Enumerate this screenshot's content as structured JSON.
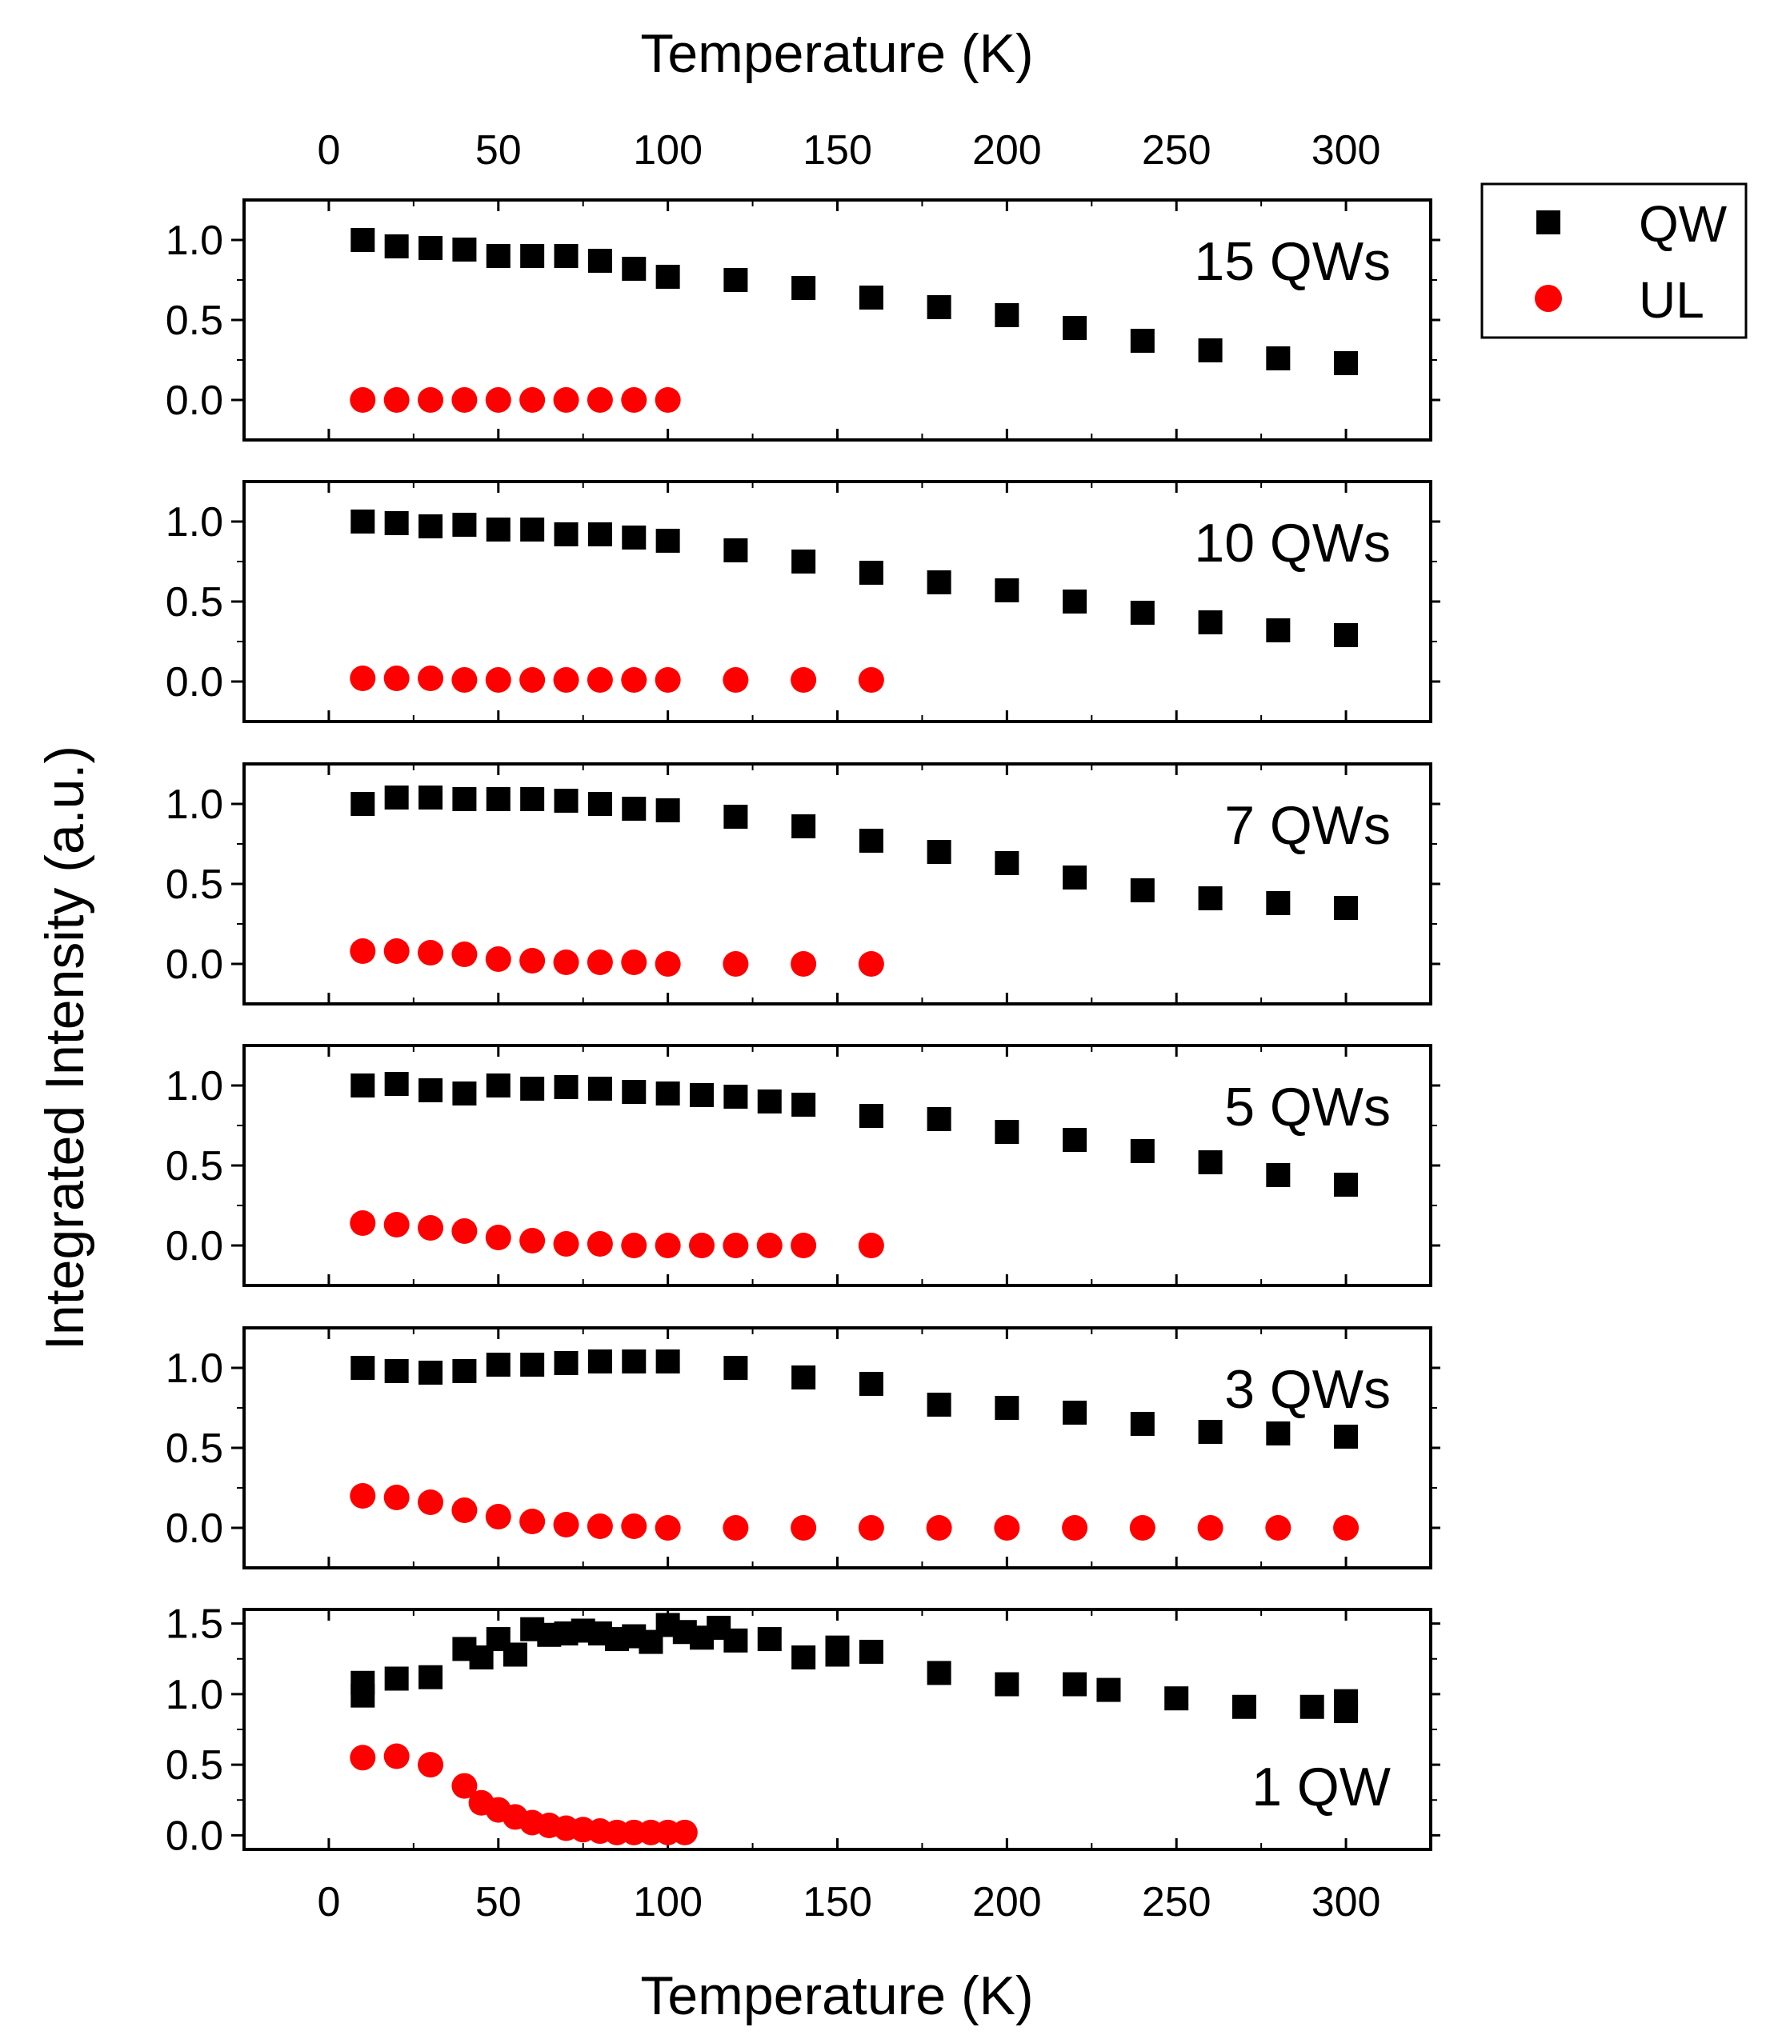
{
  "chart_data": {
    "type": "scatter",
    "xlabel_top": "Temperature (K)",
    "xlabel_bottom": "Temperature (K)",
    "ylabel": "Integrated Intensity (a.u.)",
    "xlim": [
      -25,
      325
    ],
    "xticks": [
      0,
      50,
      100,
      150,
      200,
      250,
      300
    ],
    "legend": {
      "placement": "top-right outside",
      "entries": [
        {
          "name": "QW",
          "marker": "square",
          "color": "#000000"
        },
        {
          "name": "UL",
          "marker": "circle",
          "color": "#ff0000"
        }
      ]
    },
    "panels": [
      {
        "label": "15 QWs",
        "ylim": [
          -0.25,
          1.25
        ],
        "yticks": [
          0.0,
          0.5,
          1.0
        ],
        "series": [
          {
            "name": "QW",
            "x": [
              10,
              20,
              30,
              40,
              50,
              60,
              70,
              80,
              90,
              100,
              120,
              140,
              160,
              180,
              200,
              220,
              240,
              260,
              280,
              300
            ],
            "y": [
              1.0,
              0.96,
              0.95,
              0.94,
              0.9,
              0.9,
              0.9,
              0.87,
              0.82,
              0.77,
              0.75,
              0.7,
              0.64,
              0.58,
              0.53,
              0.45,
              0.37,
              0.31,
              0.26,
              0.23
            ]
          },
          {
            "name": "UL",
            "x": [
              10,
              20,
              30,
              40,
              50,
              60,
              70,
              80,
              90,
              100
            ],
            "y": [
              0,
              0,
              0,
              0,
              0,
              0,
              0,
              0,
              0,
              0
            ]
          }
        ]
      },
      {
        "label": "10 QWs",
        "ylim": [
          -0.25,
          1.25
        ],
        "yticks": [
          0.0,
          0.5,
          1.0
        ],
        "series": [
          {
            "name": "QW",
            "x": [
              10,
              20,
              30,
              40,
              50,
              60,
              70,
              80,
              90,
              100,
              120,
              140,
              160,
              180,
              200,
              220,
              240,
              260,
              280,
              300
            ],
            "y": [
              1.0,
              0.99,
              0.97,
              0.98,
              0.95,
              0.95,
              0.92,
              0.92,
              0.9,
              0.88,
              0.82,
              0.75,
              0.68,
              0.62,
              0.57,
              0.5,
              0.43,
              0.37,
              0.32,
              0.29
            ]
          },
          {
            "name": "UL",
            "x": [
              10,
              20,
              30,
              40,
              50,
              60,
              70,
              80,
              90,
              100,
              120,
              140,
              160
            ],
            "y": [
              0.02,
              0.02,
              0.02,
              0.01,
              0.01,
              0.01,
              0.01,
              0.01,
              0.01,
              0.01,
              0.01,
              0.01,
              0.01
            ]
          }
        ]
      },
      {
        "label": "7 QWs",
        "ylim": [
          -0.25,
          1.25
        ],
        "yticks": [
          0.0,
          0.5,
          1.0
        ],
        "series": [
          {
            "name": "QW",
            "x": [
              10,
              20,
              30,
              40,
              50,
              60,
              70,
              80,
              90,
              100,
              120,
              140,
              160,
              180,
              200,
              220,
              240,
              260,
              280,
              300
            ],
            "y": [
              1.0,
              1.04,
              1.04,
              1.03,
              1.03,
              1.03,
              1.02,
              1.0,
              0.97,
              0.96,
              0.92,
              0.86,
              0.77,
              0.7,
              0.63,
              0.54,
              0.46,
              0.41,
              0.38,
              0.35
            ]
          },
          {
            "name": "UL",
            "x": [
              10,
              20,
              30,
              40,
              50,
              60,
              70,
              80,
              90,
              100,
              120,
              140,
              160
            ],
            "y": [
              0.08,
              0.08,
              0.07,
              0.06,
              0.03,
              0.02,
              0.01,
              0.01,
              0.01,
              0.0,
              0.0,
              0.0,
              0.0
            ]
          }
        ]
      },
      {
        "label": "5 QWs",
        "ylim": [
          -0.25,
          1.25
        ],
        "yticks": [
          0.0,
          0.5,
          1.0
        ],
        "series": [
          {
            "name": "QW",
            "x": [
              10,
              20,
              30,
              40,
              50,
              60,
              70,
              80,
              90,
              100,
              110,
              120,
              130,
              140,
              160,
              180,
              200,
              220,
              240,
              260,
              280,
              300
            ],
            "y": [
              1.0,
              1.01,
              0.97,
              0.95,
              1.0,
              0.98,
              0.99,
              0.98,
              0.96,
              0.95,
              0.94,
              0.93,
              0.9,
              0.88,
              0.81,
              0.79,
              0.71,
              0.66,
              0.59,
              0.52,
              0.44,
              0.38
            ]
          },
          {
            "name": "UL",
            "x": [
              10,
              20,
              30,
              40,
              50,
              60,
              70,
              80,
              90,
              100,
              110,
              120,
              130,
              140,
              160
            ],
            "y": [
              0.14,
              0.13,
              0.11,
              0.09,
              0.05,
              0.03,
              0.01,
              0.01,
              0.0,
              0.0,
              0.0,
              0.0,
              0.0,
              0.0,
              0.0
            ]
          }
        ]
      },
      {
        "label": "3 QWs",
        "ylim": [
          -0.25,
          1.25
        ],
        "yticks": [
          0.0,
          0.5,
          1.0
        ],
        "series": [
          {
            "name": "QW",
            "x": [
              10,
              20,
              30,
              40,
              50,
              60,
              70,
              80,
              90,
              100,
              120,
              140,
              160,
              180,
              200,
              220,
              240,
              260,
              280,
              300
            ],
            "y": [
              1.0,
              0.98,
              0.97,
              0.98,
              1.02,
              1.02,
              1.03,
              1.04,
              1.04,
              1.04,
              1.0,
              0.94,
              0.9,
              0.77,
              0.75,
              0.72,
              0.65,
              0.6,
              0.59,
              0.57
            ]
          },
          {
            "name": "UL",
            "x": [
              10,
              20,
              30,
              40,
              50,
              60,
              70,
              80,
              90,
              100,
              120,
              140,
              160,
              180,
              200,
              220,
              240,
              260,
              280,
              300
            ],
            "y": [
              0.2,
              0.19,
              0.16,
              0.11,
              0.07,
              0.04,
              0.02,
              0.01,
              0.01,
              0.0,
              0.0,
              0.0,
              0.0,
              0.0,
              0.0,
              0.0,
              0.0,
              0.0,
              0.0,
              0.0
            ]
          }
        ]
      },
      {
        "label": "1 QW",
        "ylim": [
          -0.1,
          1.6
        ],
        "yticks": [
          0.0,
          0.5,
          1.0,
          1.5
        ],
        "series": [
          {
            "name": "QW",
            "x": [
              10,
              10,
              20,
              30,
              40,
              45,
              50,
              55,
              60,
              65,
              70,
              75,
              80,
              85,
              90,
              95,
              100,
              105,
              110,
              115,
              120,
              130,
              140,
              150,
              150,
              160,
              180,
              200,
              220,
              230,
              250,
              270,
              290,
              300,
              300
            ],
            "y": [
              0.99,
              1.08,
              1.11,
              1.12,
              1.32,
              1.26,
              1.39,
              1.28,
              1.46,
              1.42,
              1.43,
              1.45,
              1.43,
              1.39,
              1.41,
              1.37,
              1.49,
              1.44,
              1.4,
              1.47,
              1.38,
              1.39,
              1.26,
              1.28,
              1.33,
              1.3,
              1.15,
              1.07,
              1.07,
              1.03,
              0.97,
              0.91,
              0.91,
              0.88,
              0.95
            ]
          },
          {
            "name": "UL",
            "x": [
              10,
              20,
              30,
              40,
              45,
              50,
              55,
              60,
              65,
              70,
              75,
              80,
              85,
              90,
              95,
              100,
              105
            ],
            "y": [
              0.55,
              0.56,
              0.5,
              0.35,
              0.23,
              0.18,
              0.13,
              0.09,
              0.07,
              0.05,
              0.04,
              0.03,
              0.02,
              0.02,
              0.02,
              0.02,
              0.02
            ]
          }
        ]
      }
    ]
  }
}
